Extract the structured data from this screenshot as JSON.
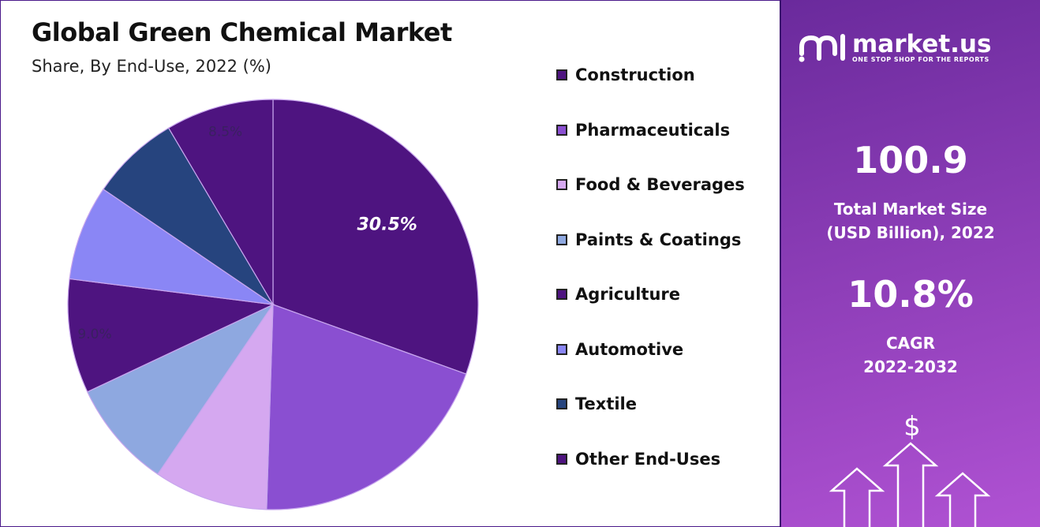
{
  "chart_data": {
    "type": "pie",
    "title": "Global Green Chemical Market",
    "subtitle": "Share, By End-Use, 2022 (%)",
    "start_angle_deg": 0,
    "direction": "clockwise",
    "slices": [
      {
        "label": "Construction",
        "value": 30.5,
        "color": "#4e1480",
        "data_label": "30.5%"
      },
      {
        "label": "Pharmaceuticals",
        "value": 20.0,
        "color": "#8a4fd1",
        "data_label": ""
      },
      {
        "label": "Food & Beverages",
        "value": 9.0,
        "color": "#d5a8f0",
        "data_label": ""
      },
      {
        "label": "Paints & Coatings",
        "value": 8.5,
        "color": "#8ea8e0",
        "data_label": ""
      },
      {
        "label": "Agriculture",
        "value": 9.0,
        "color": "#4e1480",
        "data_label": "9.0%"
      },
      {
        "label": "Automotive",
        "value": 7.5,
        "color": "#8a86f5",
        "data_label": ""
      },
      {
        "label": "Textile",
        "value": 7.0,
        "color": "#26447e",
        "data_label": ""
      },
      {
        "label": "Other End-Uses",
        "value": 8.5,
        "color": "#4e1480",
        "data_label": "8.5%"
      }
    ]
  },
  "stats": {
    "brand_name": "market.us",
    "brand_tagline": "ONE STOP SHOP FOR THE REPORTS",
    "market_size_value": "100.9",
    "market_size_label_1": "Total Market Size",
    "market_size_label_2": "(USD Billion), 2022",
    "cagr_value": "10.8%",
    "cagr_label_1": "CAGR",
    "cagr_label_2": "2022-2032",
    "dollar_symbol": "$"
  },
  "colors": {
    "panel_start": "#6a2a9c",
    "panel_end": "#b052d3",
    "slice_border": "#c8a6ee"
  }
}
